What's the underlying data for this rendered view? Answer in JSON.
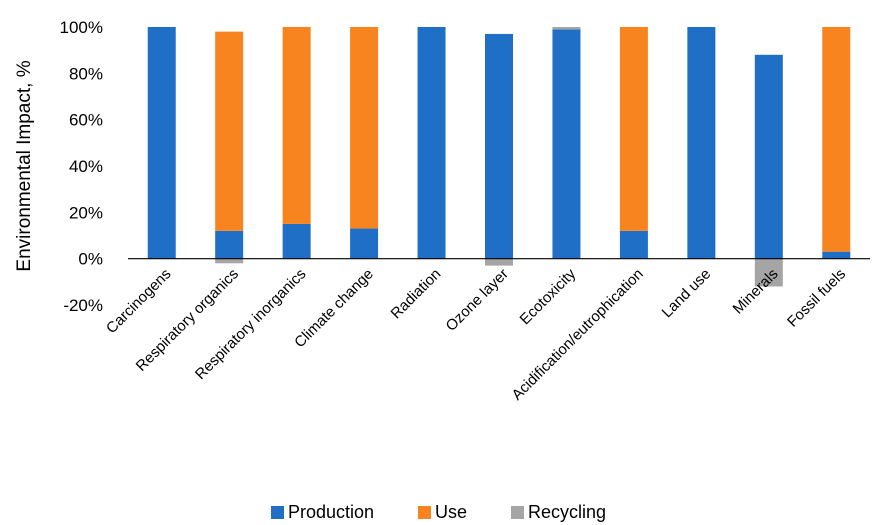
{
  "chart_data": {
    "type": "bar",
    "stacked": true,
    "title": "",
    "xlabel": "",
    "ylabel": "Environmental Impact, %",
    "ylim": [
      -20,
      100
    ],
    "yticks": [
      "-20%",
      "0%",
      "20%",
      "40%",
      "60%",
      "80%",
      "100%"
    ],
    "grid": false,
    "legend_position": "bottom",
    "categories": [
      "Carcinogens",
      "Respiratory organics",
      "Respiratory inorganics",
      "Climate change",
      "Radiation",
      "Ozone layer",
      "Ecotoxicity",
      "Acidification/eutrophication",
      "Land use",
      "Minerals",
      "Fossil fuels"
    ],
    "series": [
      {
        "name": "Production",
        "color": "#1f6fc6",
        "values": [
          100,
          12,
          15,
          13,
          100,
          97,
          99,
          12,
          100,
          88,
          3
        ]
      },
      {
        "name": "Use",
        "color": "#f7841e",
        "values": [
          0,
          86,
          85,
          87,
          0,
          0,
          0,
          88,
          0,
          0,
          97
        ]
      },
      {
        "name": "Recycling",
        "color": "#a5a5a5",
        "values": [
          0,
          -2,
          0,
          0,
          0,
          -3,
          1,
          0,
          0,
          -12,
          0
        ]
      }
    ]
  }
}
